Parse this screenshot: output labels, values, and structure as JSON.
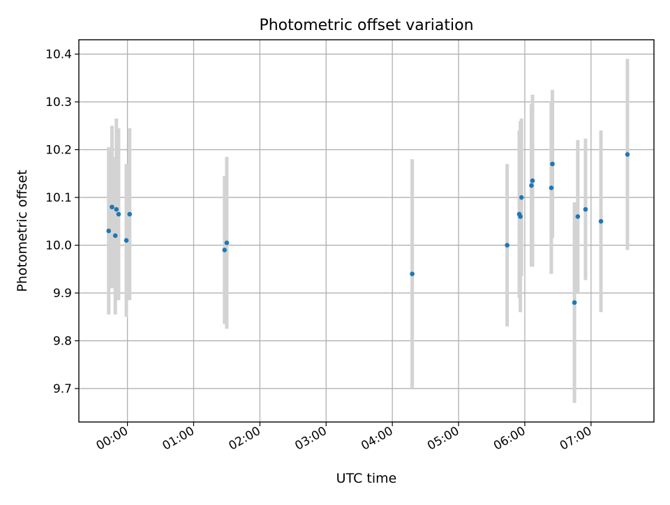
{
  "chart_data": {
    "type": "scatter",
    "title": "Photometric offset variation",
    "xlabel": "UTC time",
    "ylabel": "Photometric offset",
    "x_ticks": [
      "00:00",
      "01:00",
      "02:00",
      "03:00",
      "04:00",
      "05:00",
      "06:00",
      "07:00"
    ],
    "y_ticks": [
      "9.7",
      "9.8",
      "9.9",
      "10.0",
      "10.1",
      "10.2",
      "10.3",
      "10.4"
    ],
    "xlim": [
      "23:16",
      "07:57"
    ],
    "ylim": [
      9.63,
      10.43
    ],
    "grid": true,
    "colors": {
      "marker": "#1f77b4",
      "errorbar": "#d3d3d3",
      "grid": "#b0b0b0"
    },
    "series": [
      {
        "points": [
          {
            "x": "23:43",
            "y": 10.03,
            "err": 0.175
          },
          {
            "x": "23:46",
            "y": 10.08,
            "err": 0.17
          },
          {
            "x": "23:49",
            "y": 10.02,
            "err": 0.165
          },
          {
            "x": "23:50",
            "y": 10.075,
            "err": 0.19
          },
          {
            "x": "23:52",
            "y": 10.065,
            "err": 0.18
          },
          {
            "x": "23:59",
            "y": 10.01,
            "err": 0.16
          },
          {
            "x": "00:02",
            "y": 10.065,
            "err": 0.18
          },
          {
            "x": "01:28",
            "y": 9.99,
            "err": 0.155
          },
          {
            "x": "01:30",
            "y": 10.005,
            "err": 0.18
          },
          {
            "x": "04:18",
            "y": 9.94,
            "err": 0.24
          },
          {
            "x": "05:44",
            "y": 10.0,
            "err": 0.17
          },
          {
            "x": "05:55",
            "y": 10.065,
            "err": 0.175
          },
          {
            "x": "05:56",
            "y": 10.06,
            "err": 0.2
          },
          {
            "x": "05:57",
            "y": 10.1,
            "err": 0.165
          },
          {
            "x": "06:06",
            "y": 10.125,
            "err": 0.17
          },
          {
            "x": "06:07",
            "y": 10.135,
            "err": 0.18
          },
          {
            "x": "06:24",
            "y": 10.12,
            "err": 0.18
          },
          {
            "x": "06:25",
            "y": 10.17,
            "err": 0.155
          },
          {
            "x": "06:45",
            "y": 9.88,
            "err": 0.21
          },
          {
            "x": "06:48",
            "y": 10.06,
            "err": 0.16
          },
          {
            "x": "06:55",
            "y": 10.075,
            "err": 0.148
          },
          {
            "x": "07:09",
            "y": 10.05,
            "err": 0.19
          },
          {
            "x": "07:33",
            "y": 10.19,
            "err": 0.2
          }
        ]
      }
    ]
  }
}
